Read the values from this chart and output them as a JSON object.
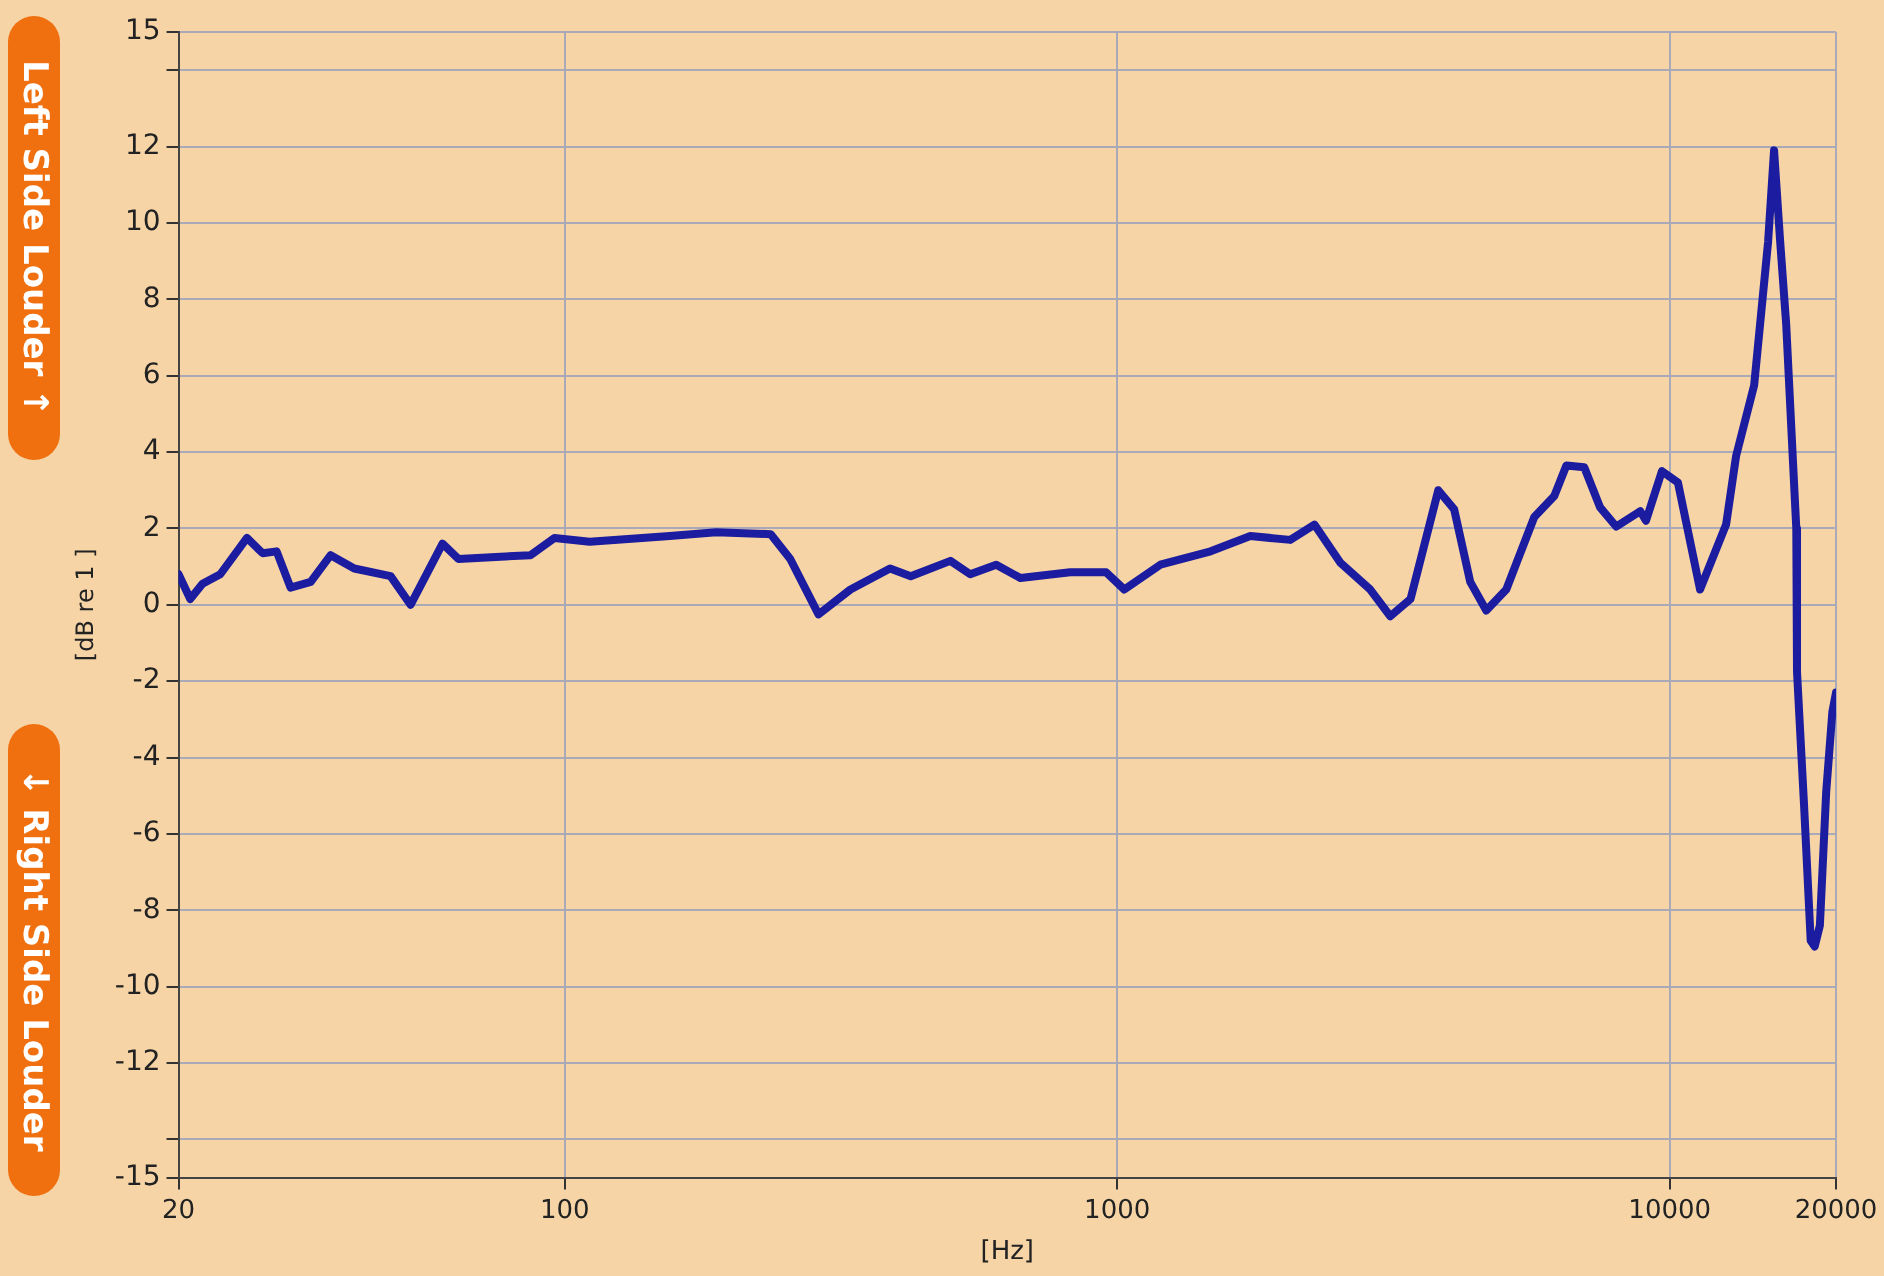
{
  "chart_data": {
    "type": "line",
    "xlabel": "[Hz]",
    "ylabel": "[dB re 1 ]",
    "annotations": [
      "Left Side Louder ↑",
      "↓ Right Side Louder"
    ],
    "log": "x",
    "grid": true,
    "legend": false,
    "marker": "none",
    "line_style": "solid",
    "x": [
      20,
      21,
      22.1,
      23.8,
      26.6,
      28.4,
      30.1,
      31.9,
      34.7,
      37.7,
      41.6,
      48.4,
      52.6,
      60.1,
      64.2,
      86.7,
      95.8,
      111,
      155,
      188,
      236,
      256,
      288,
      329,
      388,
      423,
      499,
      542,
      604,
      668,
      822,
      955,
      1030,
      1197,
      1476,
      1742,
      2057,
      2275,
      2535,
      2871,
      3121,
      3396,
      3812,
      4073,
      4355,
      4656,
      5061,
      5688,
      6182,
      6501,
      7004,
      7484,
      8000,
      8848,
      9059,
      9682,
      10350,
      11350,
      12650,
      13190,
      14220,
      15070,
      15450,
      15850,
      16250,
      16950,
      17000,
      17500,
      18000,
      18300,
      18700,
      19200,
      19700,
      20000
    ],
    "series": [
      {
        "color": "#1c1ca0",
        "values": [
          0.8,
          0.15,
          0.55,
          0.8,
          1.75,
          1.35,
          1.4,
          0.45,
          0.6,
          1.3,
          0.95,
          0.75,
          0,
          1.6,
          1.2,
          1.3,
          1.75,
          1.65,
          1.8,
          1.9,
          1.85,
          1.2,
          -0.25,
          0.4,
          0.95,
          0.75,
          1.15,
          0.8,
          1.05,
          0.7,
          0.85,
          0.85,
          0.4,
          1.05,
          1.4,
          1.8,
          1.7,
          2.1,
          1.1,
          0.4,
          -0.3,
          0.15,
          3.0,
          2.5,
          0.6,
          -0.15,
          0.4,
          2.3,
          2.85,
          3.65,
          3.6,
          2.55,
          2.05,
          2.45,
          2.2,
          3.5,
          3.2,
          0.4,
          2.1,
          3.9,
          5.75,
          9.5,
          11.9,
          9.5,
          7.35,
          2.0,
          -1.75,
          -5.2,
          -8.8,
          -8.95,
          -8.4,
          -4.9,
          -2.8,
          -2.3
        ]
      }
    ],
    "xlim": [
      20,
      20000
    ],
    "xticks": [
      20,
      100,
      1000,
      10000,
      20000
    ],
    "ylim": [
      -15,
      15
    ],
    "yticks": [
      15,
      {
        "value": 14,
        "label": null
      },
      12,
      10,
      8,
      6,
      4,
      2,
      0,
      -2,
      -4,
      -6,
      -8,
      -10,
      -12,
      {
        "value": -14,
        "label": null
      },
      -15
    ]
  }
}
